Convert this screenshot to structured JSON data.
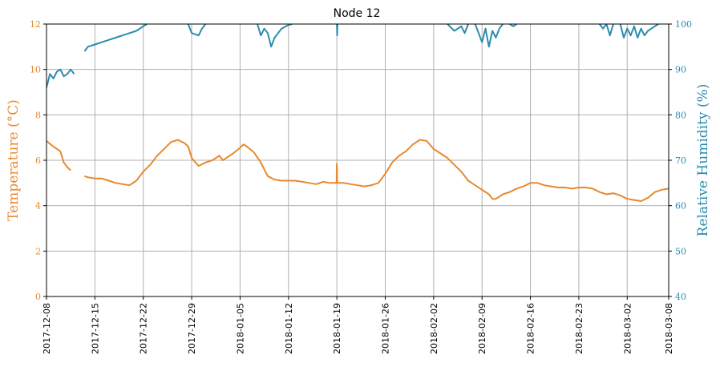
{
  "chart_data": {
    "type": "line",
    "title": "Node 12",
    "x_type": "date",
    "xlim": [
      "2017-12-08",
      "2018-03-08"
    ],
    "x_ticks": [
      "2017-12-08",
      "2017-12-15",
      "2017-12-22",
      "2017-12-29",
      "2018-01-05",
      "2018-01-12",
      "2018-01-19",
      "2018-01-26",
      "2018-02-02",
      "2018-02-09",
      "2018-02-16",
      "2018-02-23",
      "2018-03-02",
      "2018-03-08"
    ],
    "grid": true,
    "y_left": {
      "label": "Temperature (°C)",
      "ylim": [
        0,
        12
      ],
      "ticks": [
        "0",
        "2",
        "4",
        "6",
        "8",
        "10",
        "12"
      ],
      "color": "#e8892f"
    },
    "y_right": {
      "label": "Relative Humidity (%)",
      "ylim": [
        40,
        100
      ],
      "ticks": [
        "40",
        "50",
        "60",
        "70",
        "80",
        "90",
        "100"
      ],
      "color": "#2b8cb0"
    },
    "series": [
      {
        "axis": "left",
        "color": "#e8892f",
        "segments": [
          [
            [
              "2017-12-08",
              6.85
            ],
            [
              "2017-12-09",
              6.6
            ],
            [
              "2017-12-10",
              6.4
            ],
            [
              "2017-12-10 12:00",
              5.9
            ],
            [
              "2017-12-11",
              5.7
            ],
            [
              "2017-12-11 12:00",
              5.55
            ]
          ],
          [
            [
              "2017-12-13 12:00",
              5.3
            ],
            [
              "2017-12-14",
              5.25
            ],
            [
              "2017-12-15",
              5.2
            ],
            [
              "2017-12-16",
              5.2
            ],
            [
              "2017-12-17",
              5.1
            ],
            [
              "2017-12-18",
              5.0
            ],
            [
              "2017-12-19",
              4.95
            ],
            [
              "2017-12-20",
              4.9
            ],
            [
              "2017-12-21",
              5.1
            ],
            [
              "2017-12-22",
              5.5
            ],
            [
              "2017-12-23",
              5.8
            ],
            [
              "2017-12-24",
              6.2
            ],
            [
              "2017-12-25",
              6.5
            ],
            [
              "2017-12-26",
              6.8
            ],
            [
              "2017-12-27",
              6.9
            ],
            [
              "2017-12-28",
              6.75
            ],
            [
              "2017-12-28 12:00",
              6.6
            ],
            [
              "2017-12-29",
              6.1
            ],
            [
              "2017-12-30",
              5.75
            ],
            [
              "2017-12-31",
              5.9
            ],
            [
              "2018-01-01",
              6.0
            ],
            [
              "2018-01-02",
              6.2
            ],
            [
              "2018-01-02 12:00",
              6.0
            ],
            [
              "2018-01-03",
              6.1
            ],
            [
              "2018-01-04",
              6.3
            ],
            [
              "2018-01-05",
              6.55
            ],
            [
              "2018-01-05 12:00",
              6.7
            ],
            [
              "2018-01-06",
              6.6
            ],
            [
              "2018-01-07",
              6.35
            ],
            [
              "2018-01-08",
              5.9
            ],
            [
              "2018-01-09",
              5.3
            ],
            [
              "2018-01-10",
              5.15
            ],
            [
              "2018-01-11",
              5.1
            ],
            [
              "2018-01-12",
              5.1
            ],
            [
              "2018-01-13",
              5.1
            ],
            [
              "2018-01-14",
              5.05
            ],
            [
              "2018-01-15",
              5.0
            ],
            [
              "2018-01-16",
              4.95
            ],
            [
              "2018-01-17",
              5.05
            ],
            [
              "2018-01-18",
              5.0
            ],
            [
              "2018-01-18 23:00",
              5.0
            ],
            [
              "2018-01-19",
              5.85
            ],
            [
              "2018-01-19 01:00",
              5.0
            ],
            [
              "2018-01-20",
              5.0
            ],
            [
              "2018-01-21",
              4.95
            ],
            [
              "2018-01-22",
              4.9
            ],
            [
              "2018-01-23",
              4.85
            ],
            [
              "2018-01-24",
              4.9
            ],
            [
              "2018-01-25",
              5.0
            ],
            [
              "2018-01-26",
              5.4
            ],
            [
              "2018-01-27",
              5.9
            ],
            [
              "2018-01-28",
              6.2
            ],
            [
              "2018-01-29",
              6.4
            ],
            [
              "2018-01-30",
              6.7
            ],
            [
              "2018-01-31",
              6.9
            ],
            [
              "2018-02-01",
              6.85
            ],
            [
              "2018-02-02",
              6.5
            ],
            [
              "2018-02-03",
              6.3
            ],
            [
              "2018-02-04",
              6.1
            ],
            [
              "2018-02-05",
              5.8
            ],
            [
              "2018-02-06",
              5.5
            ],
            [
              "2018-02-07",
              5.1
            ],
            [
              "2018-02-08",
              4.9
            ],
            [
              "2018-02-09",
              4.7
            ],
            [
              "2018-02-10",
              4.5
            ],
            [
              "2018-02-10 12:00",
              4.3
            ],
            [
              "2018-02-11",
              4.3
            ],
            [
              "2018-02-12",
              4.5
            ],
            [
              "2018-02-13",
              4.6
            ],
            [
              "2018-02-14",
              4.75
            ],
            [
              "2018-02-15",
              4.85
            ],
            [
              "2018-02-16",
              5.0
            ],
            [
              "2018-02-17",
              5.0
            ],
            [
              "2018-02-18",
              4.9
            ],
            [
              "2018-02-19",
              4.85
            ],
            [
              "2018-02-20",
              4.8
            ],
            [
              "2018-02-21",
              4.8
            ],
            [
              "2018-02-22",
              4.75
            ],
            [
              "2018-02-23",
              4.8
            ],
            [
              "2018-02-24",
              4.8
            ],
            [
              "2018-02-25",
              4.75
            ],
            [
              "2018-02-26",
              4.6
            ],
            [
              "2018-02-27",
              4.5
            ],
            [
              "2018-02-28",
              4.55
            ],
            [
              "2018-03-01",
              4.45
            ],
            [
              "2018-03-02",
              4.3
            ],
            [
              "2018-03-03",
              4.25
            ],
            [
              "2018-03-04",
              4.2
            ],
            [
              "2018-03-05",
              4.35
            ],
            [
              "2018-03-06",
              4.6
            ],
            [
              "2018-03-07",
              4.7
            ],
            [
              "2018-03-08",
              4.75
            ]
          ]
        ]
      },
      {
        "axis": "right",
        "color": "#2b8cb0",
        "segments": [
          [
            [
              "2017-12-08",
              86
            ],
            [
              "2017-12-08 12:00",
              89
            ],
            [
              "2017-12-09",
              88
            ],
            [
              "2017-12-09 12:00",
              89.5
            ],
            [
              "2017-12-10",
              90
            ],
            [
              "2017-12-10 12:00",
              88.5
            ],
            [
              "2017-12-11",
              89
            ],
            [
              "2017-12-11 12:00",
              90
            ],
            [
              "2017-12-12",
              89
            ]
          ],
          [
            [
              "2017-12-13 12:00",
              94
            ],
            [
              "2017-12-14",
              95
            ],
            [
              "2017-12-15",
              95.5
            ],
            [
              "2017-12-16",
              96
            ],
            [
              "2017-12-17",
              96.5
            ],
            [
              "2017-12-18",
              97
            ],
            [
              "2017-12-19",
              97.5
            ],
            [
              "2017-12-20",
              98
            ],
            [
              "2017-12-21",
              98.5
            ],
            [
              "2017-12-22",
              99.5
            ],
            [
              "2017-12-22 12:00",
              100
            ]
          ],
          [
            [
              "2017-12-28 12:00",
              100
            ],
            [
              "2017-12-29",
              98
            ],
            [
              "2017-12-30",
              97.5
            ],
            [
              "2017-12-30 12:00",
              99
            ],
            [
              "2017-12-31",
              100
            ]
          ],
          [
            [
              "2018-01-07 12:00",
              100
            ],
            [
              "2018-01-08",
              97.5
            ],
            [
              "2018-01-08 12:00",
              99
            ],
            [
              "2018-01-09",
              98
            ],
            [
              "2018-01-09 12:00",
              95
            ],
            [
              "2018-01-10",
              97
            ],
            [
              "2018-01-10 12:00",
              98
            ],
            [
              "2018-01-11",
              99
            ],
            [
              "2018-01-12",
              99.8
            ],
            [
              "2018-01-12 12:00",
              100
            ]
          ],
          [
            [
              "2018-01-19",
              100
            ],
            [
              "2018-01-19 01:00",
              97.5
            ],
            [
              "2018-01-19 02:00",
              100
            ]
          ],
          [
            [
              "2018-02-04",
              100
            ],
            [
              "2018-02-05",
              98.5
            ],
            [
              "2018-02-06",
              99.5
            ],
            [
              "2018-02-06 12:00",
              98
            ],
            [
              "2018-02-07",
              100
            ]
          ],
          [
            [
              "2018-02-08",
              100
            ],
            [
              "2018-02-08 12:00",
              98
            ],
            [
              "2018-02-09",
              96
            ],
            [
              "2018-02-09 12:00",
              99
            ],
            [
              "2018-02-10",
              95
            ],
            [
              "2018-02-10 12:00",
              98.5
            ],
            [
              "2018-02-11",
              97
            ],
            [
              "2018-02-11 12:00",
              99
            ],
            [
              "2018-02-12",
              100
            ]
          ],
          [
            [
              "2018-02-13",
              100
            ],
            [
              "2018-02-13 12:00",
              99.5
            ],
            [
              "2018-02-14",
              100
            ]
          ],
          [
            [
              "2018-02-26",
              100
            ],
            [
              "2018-02-26 12:00",
              99
            ],
            [
              "2018-02-27",
              100
            ],
            [
              "2018-02-27 12:00",
              97.5
            ],
            [
              "2018-02-28",
              100
            ]
          ],
          [
            [
              "2018-03-01",
              100
            ],
            [
              "2018-03-01 12:00",
              97
            ],
            [
              "2018-03-02",
              99
            ],
            [
              "2018-03-02 12:00",
              97.5
            ],
            [
              "2018-03-03",
              99.5
            ],
            [
              "2018-03-03 12:00",
              97
            ],
            [
              "2018-03-04",
              99
            ],
            [
              "2018-03-04 12:00",
              97.5
            ],
            [
              "2018-03-05",
              98.5
            ],
            [
              "2018-03-06",
              99.5
            ],
            [
              "2018-03-06 12:00",
              100
            ]
          ]
        ]
      }
    ]
  }
}
